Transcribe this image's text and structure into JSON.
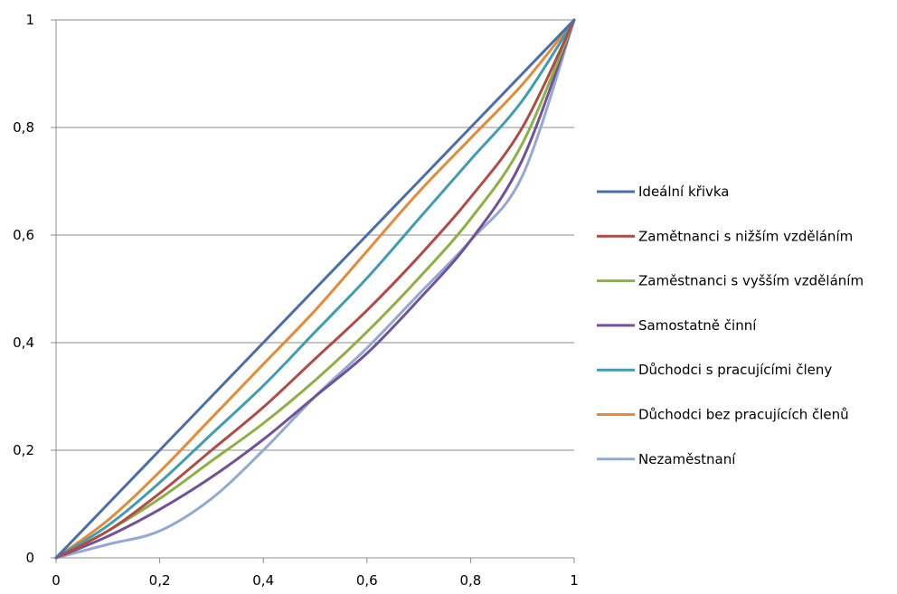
{
  "chart_data": {
    "type": "line",
    "title": "",
    "xlabel": "",
    "ylabel": "",
    "xlim": [
      0,
      1
    ],
    "ylim": [
      0,
      1
    ],
    "x_ticks": [
      "0",
      "0,2",
      "0,4",
      "0,6",
      "0,8",
      "1"
    ],
    "y_ticks": [
      "0",
      "0,2",
      "0,4",
      "0,6",
      "0,8",
      "1"
    ],
    "grid": "horizontal",
    "legend_position": "right",
    "x": [
      0,
      0.1,
      0.2,
      0.3,
      0.4,
      0.5,
      0.6,
      0.7,
      0.8,
      0.9,
      1
    ],
    "series": [
      {
        "name": "Ideální křivka",
        "color": "#4A6EA9",
        "values": [
          0,
          0.1,
          0.2,
          0.3,
          0.4,
          0.5,
          0.6,
          0.7,
          0.8,
          0.9,
          1
        ]
      },
      {
        "name": "Zamětnanci s nižším vzděláním",
        "color": "#B24A46",
        "values": [
          0,
          0.05,
          0.12,
          0.2,
          0.28,
          0.37,
          0.46,
          0.56,
          0.67,
          0.8,
          1
        ]
      },
      {
        "name": "Zaměstnanci s vyšším vzděláním",
        "color": "#8DB043",
        "values": [
          0,
          0.05,
          0.11,
          0.18,
          0.25,
          0.33,
          0.42,
          0.52,
          0.63,
          0.77,
          1
        ]
      },
      {
        "name": "Samostatně činní",
        "color": "#71519A",
        "values": [
          0,
          0.04,
          0.09,
          0.15,
          0.22,
          0.3,
          0.38,
          0.48,
          0.59,
          0.74,
          1
        ]
      },
      {
        "name": "Důchodci s pracujícími členy",
        "color": "#3F9DB3",
        "values": [
          0,
          0.06,
          0.14,
          0.23,
          0.32,
          0.42,
          0.52,
          0.63,
          0.74,
          0.85,
          1
        ]
      },
      {
        "name": "Důchodci bez pracujících členů",
        "color": "#E58A36",
        "values": [
          0,
          0.07,
          0.16,
          0.26,
          0.36,
          0.46,
          0.57,
          0.68,
          0.78,
          0.88,
          1
        ]
      },
      {
        "name": "Nezaměstnaní",
        "color": "#93A9D1",
        "values": [
          0,
          0.025,
          0.05,
          0.11,
          0.2,
          0.3,
          0.39,
          0.49,
          0.59,
          0.71,
          1
        ]
      }
    ]
  }
}
